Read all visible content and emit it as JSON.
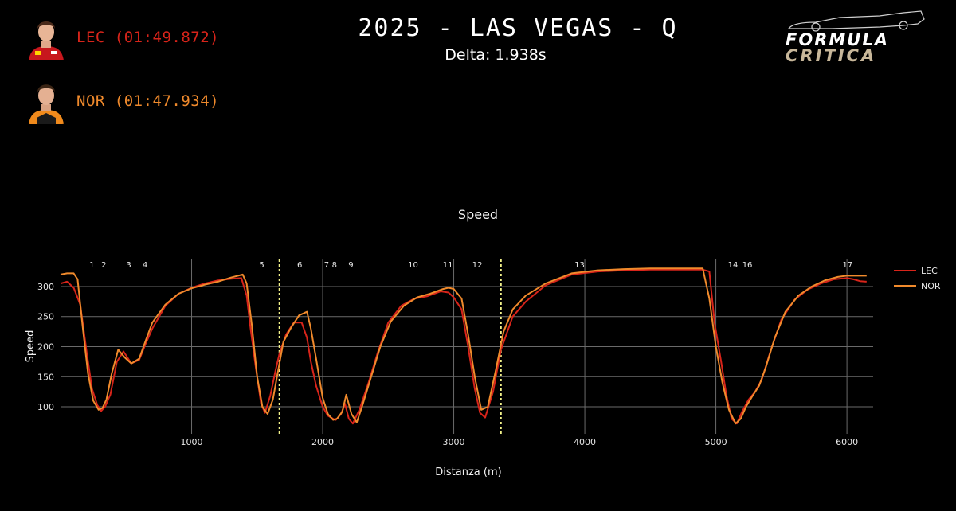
{
  "header": {
    "title": "2025 - LAS VEGAS - Q",
    "subtitle": "Delta: 1.938s"
  },
  "drivers": [
    {
      "code": "LEC",
      "label": "LEC (01:49.872)",
      "color": "#d8241a"
    },
    {
      "code": "NOR",
      "label": "NOR (01:47.934)",
      "color": "#f08a2c"
    }
  ],
  "logo": {
    "line1": "FORMULA",
    "line2": "CRITICA"
  },
  "chart_data": {
    "type": "line",
    "title": "Speed",
    "xlabel": "Distanza (m)",
    "ylabel": "Speed",
    "xlim": [
      0,
      6200
    ],
    "ylim": [
      55,
      345
    ],
    "xticks": [
      1000,
      2000,
      3000,
      4000,
      5000,
      6000
    ],
    "yticks": [
      100,
      150,
      200,
      250,
      300
    ],
    "grid": true,
    "legend_position": "right",
    "corners": [
      {
        "label": "1",
        "x": 240
      },
      {
        "label": "2",
        "x": 330
      },
      {
        "label": "3",
        "x": 520
      },
      {
        "label": "4",
        "x": 645
      },
      {
        "label": "5",
        "x": 1535
      },
      {
        "label": "6",
        "x": 1825
      },
      {
        "label": "7",
        "x": 2030
      },
      {
        "label": "8",
        "x": 2090
      },
      {
        "label": "9",
        "x": 2215
      },
      {
        "label": "10",
        "x": 2690
      },
      {
        "label": "11",
        "x": 2955
      },
      {
        "label": "12",
        "x": 3180
      },
      {
        "label": "13",
        "x": 3960
      },
      {
        "label": "14",
        "x": 5130
      },
      {
        "label": "16",
        "x": 5240
      },
      {
        "label": "17",
        "x": 6005
      }
    ],
    "sector_lines": [
      1670,
      3360
    ],
    "series": [
      {
        "name": "LEC",
        "color": "#d8241a",
        "x": [
          0,
          50,
          100,
          150,
          200,
          240,
          280,
          310,
          340,
          380,
          430,
          480,
          540,
          600,
          650,
          700,
          800,
          900,
          1000,
          1100,
          1200,
          1300,
          1380,
          1420,
          1450,
          1490,
          1530,
          1560,
          1600,
          1640,
          1670,
          1720,
          1780,
          1840,
          1880,
          1910,
          1950,
          2000,
          2040,
          2080,
          2100,
          2140,
          2170,
          2200,
          2230,
          2280,
          2350,
          2420,
          2500,
          2600,
          2700,
          2800,
          2900,
          2960,
          3000,
          3060,
          3110,
          3160,
          3200,
          3240,
          3300,
          3360,
          3450,
          3550,
          3700,
          3900,
          4100,
          4300,
          4500,
          4700,
          4900,
          4950,
          4990,
          5040,
          5080,
          5120,
          5160,
          5200,
          5250,
          5300,
          5350,
          5420,
          5500,
          5600,
          5700,
          5800,
          5900,
          6000,
          6050,
          6100,
          6150
        ],
        "y": [
          305,
          308,
          298,
          270,
          190,
          130,
          103,
          93,
          100,
          120,
          175,
          192,
          172,
          178,
          205,
          230,
          268,
          288,
          298,
          305,
          310,
          313,
          314,
          285,
          230,
          165,
          105,
          90,
          118,
          160,
          188,
          220,
          240,
          240,
          215,
          175,
          135,
          100,
          85,
          80,
          78,
          88,
          105,
          80,
          72,
          95,
          140,
          190,
          240,
          268,
          280,
          284,
          292,
          290,
          282,
          262,
          200,
          130,
          90,
          82,
          125,
          195,
          250,
          275,
          302,
          320,
          325,
          327,
          328,
          328,
          328,
          325,
          240,
          175,
          120,
          80,
          72,
          92,
          112,
          125,
          145,
          195,
          245,
          278,
          295,
          305,
          312,
          314,
          312,
          309,
          308
        ]
      },
      {
        "name": "NOR",
        "color": "#f08a2c",
        "x": [
          0,
          50,
          100,
          130,
          170,
          210,
          250,
          290,
          320,
          350,
          390,
          440,
          490,
          540,
          600,
          650,
          700,
          800,
          900,
          1000,
          1100,
          1200,
          1300,
          1390,
          1420,
          1460,
          1500,
          1540,
          1580,
          1620,
          1660,
          1700,
          1760,
          1820,
          1880,
          1910,
          1950,
          2000,
          2040,
          2080,
          2110,
          2150,
          2180,
          2220,
          2260,
          2300,
          2370,
          2440,
          2520,
          2620,
          2720,
          2820,
          2920,
          2960,
          3000,
          3060,
          3110,
          3160,
          3210,
          3260,
          3320,
          3380,
          3450,
          3550,
          3700,
          3900,
          4100,
          4300,
          4500,
          4700,
          4900,
          4950,
          5000,
          5050,
          5100,
          5150,
          5190,
          5230,
          5280,
          5330,
          5380,
          5450,
          5530,
          5630,
          5730,
          5830,
          5930,
          6000,
          6050,
          6100,
          6150
        ],
        "y": [
          320,
          322,
          322,
          312,
          230,
          155,
          110,
          95,
          98,
          112,
          155,
          195,
          182,
          172,
          180,
          210,
          240,
          270,
          288,
          297,
          303,
          308,
          315,
          320,
          305,
          235,
          150,
          100,
          88,
          112,
          160,
          208,
          232,
          252,
          258,
          230,
          180,
          115,
          88,
          78,
          80,
          92,
          120,
          88,
          74,
          100,
          150,
          200,
          242,
          268,
          282,
          288,
          296,
          298,
          296,
          280,
          220,
          150,
          95,
          100,
          160,
          225,
          262,
          285,
          305,
          322,
          327,
          329,
          330,
          330,
          330,
          280,
          200,
          140,
          95,
          72,
          80,
          100,
          118,
          135,
          165,
          215,
          258,
          285,
          300,
          310,
          316,
          318,
          318,
          318,
          318
        ]
      }
    ]
  }
}
